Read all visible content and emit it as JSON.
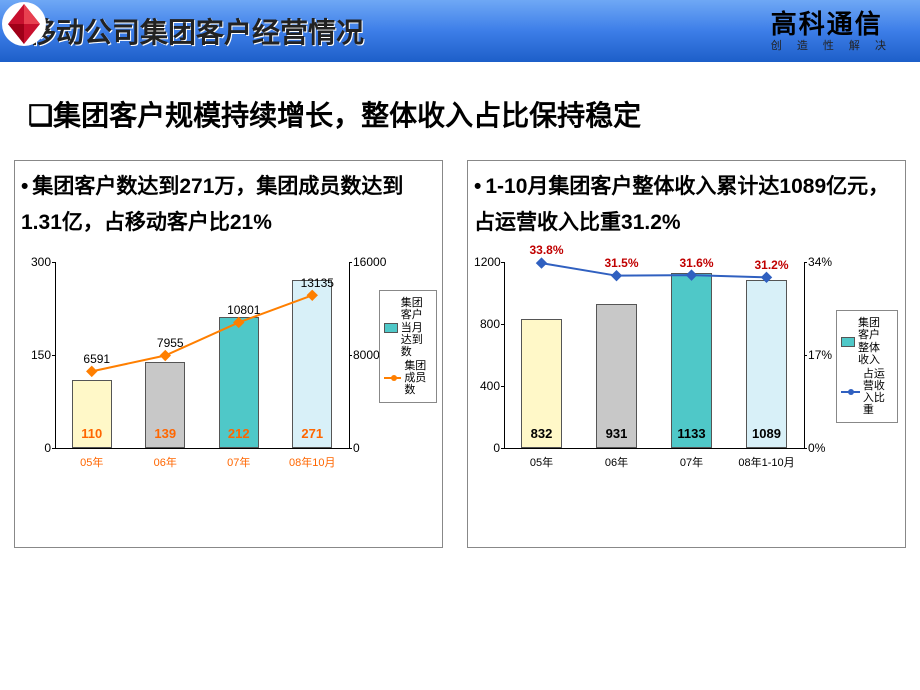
{
  "header": {
    "title": "移动公司集团客户经营情况",
    "logo_main": "高科通信",
    "logo_sub": "创 造 性 解 决",
    "logo_color": "#c8102e"
  },
  "subtitle": "❏集团客户规模持续增长，整体收入占比保持稳定",
  "chart_left": {
    "desc": "集团客户数达到271万，集团成员数达到1.31亿，占移动客户比21%",
    "type": "bar+line",
    "categories": [
      "05年",
      "06年",
      "07年",
      "08年10月"
    ],
    "bars": {
      "values": [
        110,
        139,
        212,
        271
      ],
      "colors": [
        "#fff8c8",
        "#c8c8c8",
        "#4fc8c8",
        "#d8f0f8"
      ],
      "labels": [
        "110",
        "139",
        "212",
        "271"
      ],
      "label_color": "#ff6600"
    },
    "line": {
      "values": [
        6591,
        7955,
        10801,
        13135
      ],
      "labels": [
        "6591",
        "7955",
        "10801",
        "13135"
      ],
      "stroke": "#ff7f00",
      "marker": "diamond",
      "marker_fill": "#ff7f00"
    },
    "y1": {
      "lim": [
        0,
        300
      ],
      "ticks": [
        0,
        150,
        300
      ]
    },
    "y2": {
      "lim": [
        0,
        16000
      ],
      "ticks": [
        0,
        8000,
        16000
      ]
    },
    "legend": {
      "items": [
        {
          "type": "bar",
          "color": "#4fc8c8",
          "label": "集团客户当月达到数"
        },
        {
          "type": "line",
          "color": "#ff7f00",
          "label": "集团成员数"
        }
      ]
    },
    "xtick_color": "#ff6600"
  },
  "chart_right": {
    "desc": "1-10月集团客户整体收入累计达1089亿元，占运营收入比重31.2%",
    "type": "bar+line",
    "categories": [
      "05年",
      "06年",
      "07年",
      "08年1-10月"
    ],
    "bars": {
      "values": [
        832,
        931,
        1133,
        1089
      ],
      "colors": [
        "#fff8c8",
        "#c8c8c8",
        "#4fc8c8",
        "#d8f0f8"
      ],
      "labels": [
        "832",
        "931",
        "1133",
        "1089"
      ]
    },
    "line": {
      "values": [
        33.8,
        31.5,
        31.6,
        31.2
      ],
      "labels": [
        "33.8%",
        "31.5%",
        "31.6%",
        "31.2%"
      ],
      "stroke": "#3060c0",
      "marker": "diamond",
      "marker_fill": "#3060c0",
      "label_color": "#c00000"
    },
    "y1": {
      "lim": [
        0,
        1200
      ],
      "ticks": [
        0,
        400,
        800,
        1200
      ]
    },
    "y2": {
      "lim": [
        0,
        34
      ],
      "ticks": [
        0,
        17,
        34
      ],
      "tick_labels": [
        "0%",
        "17%",
        "34%"
      ]
    },
    "legend": {
      "items": [
        {
          "type": "bar",
          "color": "#4fc8c8",
          "label": "集团客户整体收入"
        },
        {
          "type": "line",
          "color": "#3060c0",
          "label": "占运营收入比重"
        }
      ]
    }
  }
}
